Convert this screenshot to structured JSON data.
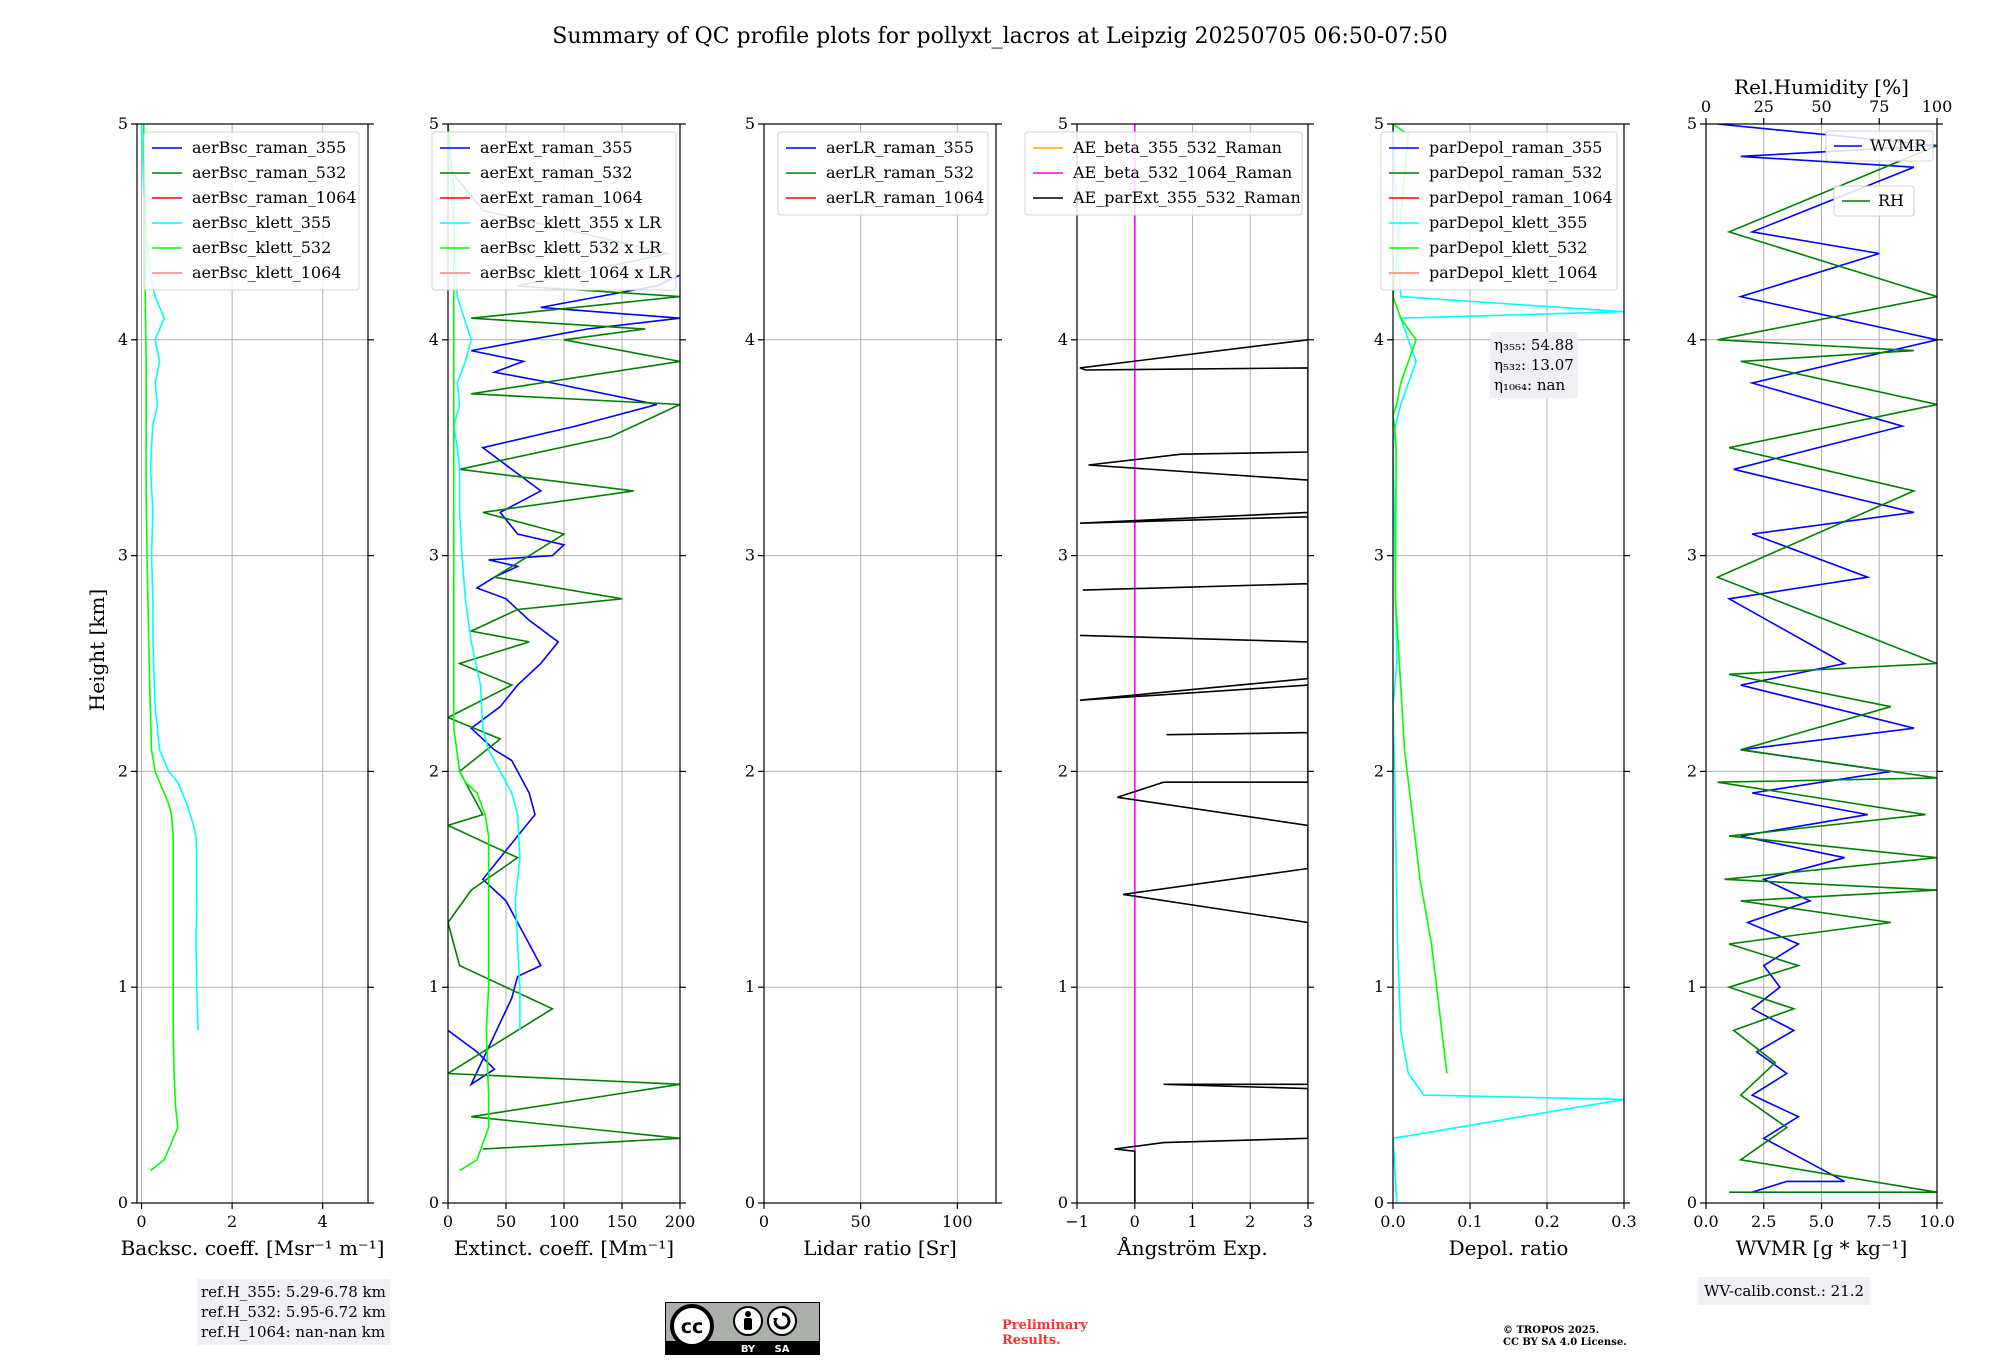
{
  "figure": {
    "title": "Summary of QC profile plots for pollyxt_lacros at Leipzig 20250705 06:50-07:50",
    "ylabel": "Height [km]",
    "yticks": [
      "0",
      "1",
      "2",
      "3",
      "4",
      "5"
    ]
  },
  "chart_data": [
    {
      "id": "bsc",
      "type": "line",
      "xlabel": "Backsc. coeff. [Msr⁻¹ m⁻¹]",
      "xlim": [
        -0.1,
        5
      ],
      "ylim": [
        0,
        5
      ],
      "xticks": [
        0,
        2,
        4
      ],
      "xtick_labels": [
        "0",
        "2",
        "4"
      ],
      "grid": true,
      "legend": "top-right",
      "series": [
        {
          "name": "aerBsc_raman_355",
          "color": "#0000ff",
          "x": [],
          "y": []
        },
        {
          "name": "aerBsc_raman_532",
          "color": "#008000",
          "x": [],
          "y": []
        },
        {
          "name": "aerBsc_raman_1064",
          "color": "#ff0000",
          "x": [],
          "y": []
        },
        {
          "name": "aerBsc_klett_355",
          "color": "#00ffff",
          "x": [
            1.25,
            1.22,
            1.2,
            1.22,
            1.22,
            1.2,
            1.15,
            1.0,
            0.8,
            0.6,
            0.4,
            0.3,
            0.25,
            0.25,
            0.22,
            0.25,
            0.2,
            0.22,
            0.25,
            0.35,
            0.3,
            0.4,
            0.3,
            0.5,
            0.3,
            0.2,
            0.15,
            0.1,
            0.05,
            0.0
          ],
          "y": [
            0.8,
            1.0,
            1.2,
            1.4,
            1.6,
            1.7,
            1.75,
            1.85,
            1.95,
            2.0,
            2.1,
            2.3,
            2.6,
            2.8,
            3.0,
            3.2,
            3.4,
            3.5,
            3.6,
            3.7,
            3.8,
            3.9,
            4.0,
            4.1,
            4.2,
            4.3,
            4.4,
            4.5,
            4.7,
            5.0
          ]
        },
        {
          "name": "aerBsc_klett_532",
          "color": "#00ff00",
          "x": [
            0.2,
            0.5,
            0.8,
            0.75,
            0.72,
            0.7,
            0.7,
            0.7,
            0.7,
            0.7,
            0.7,
            0.66,
            0.6,
            0.5,
            0.4,
            0.3,
            0.22,
            0.18,
            0.15,
            0.12,
            0.1,
            0.1,
            0.1,
            0.08,
            0.1,
            0.08,
            0.05,
            0.05
          ],
          "y": [
            0.15,
            0.2,
            0.35,
            0.45,
            0.6,
            0.8,
            1.0,
            1.2,
            1.4,
            1.6,
            1.7,
            1.8,
            1.85,
            1.9,
            1.95,
            2.0,
            2.1,
            2.4,
            2.7,
            3.0,
            3.3,
            3.6,
            3.9,
            4.2,
            4.5,
            4.7,
            4.85,
            5.0
          ]
        },
        {
          "name": "aerBsc_klett_1064",
          "color": "#ff8080",
          "x": [],
          "y": []
        }
      ]
    },
    {
      "id": "ext",
      "type": "line",
      "xlabel": "Extinct. coeff. [Mm⁻¹]",
      "xlim": [
        0,
        200
      ],
      "ylim": [
        0,
        5
      ],
      "xticks": [
        0,
        50,
        100,
        150,
        200
      ],
      "xtick_labels": [
        "0",
        "50",
        "100",
        "150",
        "200"
      ],
      "grid": true,
      "legend": "top-right",
      "series": [
        {
          "name": "aerExt_raman_355",
          "color": "#0000ff",
          "x": [
            0,
            25,
            40,
            20,
            55,
            60,
            80,
            70,
            60,
            50,
            30,
            45,
            60,
            75,
            70,
            65,
            60,
            55,
            40,
            20,
            45,
            60,
            80,
            95,
            70,
            50,
            25,
            40,
            60,
            35,
            90,
            100,
            60,
            45,
            80,
            30,
            110,
            180,
            90,
            40,
            65,
            20,
            70,
            120,
            200,
            80,
            130,
            180,
            200
          ],
          "y": [
            0.8,
            0.7,
            0.62,
            0.55,
            0.95,
            1.05,
            1.1,
            1.2,
            1.3,
            1.4,
            1.5,
            1.6,
            1.7,
            1.8,
            1.9,
            1.95,
            2.0,
            2.05,
            2.1,
            2.2,
            2.3,
            2.4,
            2.5,
            2.6,
            2.7,
            2.8,
            2.85,
            2.9,
            2.95,
            2.98,
            3.0,
            3.05,
            3.1,
            3.2,
            3.3,
            3.5,
            3.6,
            3.7,
            3.8,
            3.85,
            3.9,
            3.95,
            4.0,
            4.05,
            4.1,
            4.15,
            4.2,
            4.25,
            4.3
          ]
        },
        {
          "name": "aerExt_raman_532",
          "color": "#008000",
          "x": [
            30,
            200,
            20,
            200,
            0,
            90,
            10,
            0,
            20,
            60,
            0,
            30,
            10,
            45,
            0,
            55,
            10,
            70,
            20,
            60,
            150,
            40,
            100,
            30,
            160,
            10,
            140,
            200,
            20,
            200,
            100,
            170,
            20,
            200,
            60,
            190,
            30,
            0
          ],
          "y": [
            0.25,
            0.3,
            0.4,
            0.55,
            0.6,
            0.9,
            1.1,
            1.3,
            1.45,
            1.6,
            1.75,
            1.8,
            2.0,
            2.15,
            2.25,
            2.4,
            2.5,
            2.6,
            2.65,
            2.75,
            2.8,
            2.9,
            3.1,
            3.2,
            3.3,
            3.4,
            3.55,
            3.7,
            3.75,
            3.9,
            4.0,
            4.05,
            4.1,
            4.2,
            4.25,
            4.4,
            4.6,
            4.8
          ]
        },
        {
          "name": "aerExt_raman_1064",
          "color": "#ff0000",
          "x": [],
          "y": []
        },
        {
          "name": "aerBsc_klett_355 x LR",
          "color": "#00ffff",
          "x": [
            62,
            62,
            60,
            58,
            62,
            60,
            55,
            50,
            45,
            40,
            35,
            30,
            28,
            20,
            15,
            12,
            10,
            10,
            8,
            5,
            10,
            8,
            15,
            20,
            8,
            5,
            0
          ],
          "y": [
            0.8,
            1.0,
            1.2,
            1.4,
            1.6,
            1.8,
            1.9,
            1.95,
            2.0,
            2.05,
            2.1,
            2.2,
            2.4,
            2.6,
            2.8,
            3.0,
            3.2,
            3.4,
            3.5,
            3.6,
            3.7,
            3.8,
            3.9,
            4.0,
            4.2,
            4.5,
            5.0
          ]
        },
        {
          "name": "aerBsc_klett_532 x LR",
          "color": "#00ff00",
          "x": [
            10,
            25,
            35,
            35,
            33,
            35,
            35,
            35,
            32,
            25,
            15,
            10,
            5,
            5,
            5,
            5,
            5,
            5,
            5,
            5,
            0
          ],
          "y": [
            0.15,
            0.2,
            0.35,
            0.5,
            0.8,
            1.0,
            1.4,
            1.7,
            1.8,
            1.9,
            1.95,
            2.0,
            2.2,
            2.5,
            2.8,
            3.2,
            3.6,
            4.0,
            4.3,
            4.7,
            5.0
          ]
        },
        {
          "name": "aerBsc_klett_1064 x LR",
          "color": "#ff8080",
          "x": [],
          "y": []
        }
      ]
    },
    {
      "id": "lr",
      "type": "line",
      "xlabel": "Lidar ratio [Sr]",
      "xlim": [
        0,
        120
      ],
      "ylim": [
        0,
        5
      ],
      "xticks": [
        0,
        50,
        100
      ],
      "xtick_labels": [
        "0",
        "50",
        "100"
      ],
      "grid": true,
      "legend": "top-right",
      "series": [
        {
          "name": "aerLR_raman_355",
          "color": "#0000ff",
          "x": [],
          "y": []
        },
        {
          "name": "aerLR_raman_532",
          "color": "#008000",
          "x": [],
          "y": []
        },
        {
          "name": "aerLR_raman_1064",
          "color": "#ff0000",
          "x": [],
          "y": []
        }
      ]
    },
    {
      "id": "ae",
      "type": "line",
      "xlabel": "Ångström Exp.",
      "xlim": [
        -1,
        3
      ],
      "ylim": [
        0,
        5
      ],
      "xticks": [
        -1,
        0,
        1,
        2,
        3
      ],
      "xtick_labels": [
        "−1",
        "0",
        "1",
        "2",
        "3"
      ],
      "grid": true,
      "legend": "top-right",
      "series": [
        {
          "name": "AE_beta_355_532_Raman",
          "color": "#ffa500",
          "x": [],
          "y": []
        },
        {
          "name": "AE_beta_532_1064_Raman",
          "color": "#ff00ff",
          "x": [
            0,
            0
          ],
          "y": [
            0,
            5
          ]
        },
        {
          "name": "AE_parExt_355_532_Raman",
          "color": "#000000",
          "x": [
            0,
            0,
            -0.35,
            0.5,
            3,
            3,
            0.5,
            3,
            3,
            -0.2,
            3,
            3,
            -0.3,
            0.5,
            3,
            3,
            0.55,
            3,
            3,
            -0.95,
            3,
            3,
            -0.95,
            3,
            3,
            -0.9,
            3,
            3,
            -0.95,
            3,
            3,
            -0.8,
            0.8,
            3,
            3,
            -0.85,
            -0.95,
            3
          ],
          "y": [
            0,
            0.24,
            0.25,
            0.28,
            0.3,
            0.53,
            0.55,
            0.55,
            1.3,
            1.43,
            1.55,
            1.75,
            1.88,
            1.95,
            1.95,
            2.18,
            2.17,
            2.18,
            2.4,
            2.33,
            2.43,
            2.6,
            2.63,
            2.6,
            2.87,
            2.84,
            2.87,
            3.2,
            3.15,
            3.18,
            3.35,
            3.42,
            3.47,
            3.48,
            3.87,
            3.86,
            3.87,
            4.0
          ]
        }
      ]
    },
    {
      "id": "dep",
      "type": "line",
      "xlabel": "Depol. ratio",
      "xlim": [
        0,
        0.3
      ],
      "ylim": [
        0,
        5
      ],
      "xticks": [
        0,
        0.1,
        0.2,
        0.3
      ],
      "xtick_labels": [
        "0.0",
        "0.1",
        "0.2",
        "0.3"
      ],
      "grid": true,
      "legend": "top-right",
      "series": [
        {
          "name": "parDepol_raman_355",
          "color": "#0000ff",
          "x": [],
          "y": []
        },
        {
          "name": "parDepol_raman_532",
          "color": "#008000",
          "x": [],
          "y": []
        },
        {
          "name": "parDepol_raman_1064",
          "color": "#ff0000",
          "x": [],
          "y": []
        },
        {
          "name": "parDepol_klett_355",
          "color": "#00ffff",
          "x": [
            0.005,
            0.0,
            0.3,
            0.04,
            0.02,
            0.01,
            0.006,
            0.004,
            0.002,
            0.0,
            0.005,
            0.0,
            0.003,
            0.01,
            0.02,
            0.03,
            0.02,
            0.01,
            0.3,
            0.01,
            0.0
          ],
          "y": [
            0.0,
            0.3,
            0.48,
            0.5,
            0.6,
            0.8,
            1.2,
            1.6,
            2.0,
            2.3,
            2.5,
            3.5,
            3.6,
            3.7,
            3.8,
            3.9,
            4.0,
            4.1,
            4.13,
            4.2,
            5.0
          ]
        },
        {
          "name": "parDepol_klett_532",
          "color": "#00ff00",
          "x": [
            0.07,
            0.06,
            0.05,
            0.035,
            0.025,
            0.015,
            0.01,
            0.005,
            0.003,
            0.004,
            0.002,
            0.0,
            0.005,
            0.01,
            0.02,
            0.03,
            0.02,
            0.01,
            0.0,
            0.02,
            0.0
          ],
          "y": [
            0.6,
            0.9,
            1.2,
            1.5,
            1.8,
            2.1,
            2.4,
            2.7,
            2.8,
            3.5,
            3.6,
            3.65,
            3.7,
            3.8,
            3.9,
            4.0,
            4.05,
            4.1,
            4.2,
            4.95,
            5.0
          ]
        },
        {
          "name": "parDepol_klett_1064",
          "color": "#fa8072",
          "x": [],
          "y": []
        }
      ]
    },
    {
      "id": "wv",
      "type": "line",
      "xlabel": "WVMR [g * kg⁻¹]",
      "xlim": [
        0,
        10
      ],
      "ylim": [
        0,
        5
      ],
      "xticks": [
        0,
        2.5,
        5,
        7.5,
        10
      ],
      "xtick_labels": [
        "0.0",
        "2.5",
        "5.0",
        "7.5",
        "10.0"
      ],
      "x2label": "Rel.Humidity [%]",
      "x2lim": [
        0,
        100
      ],
      "x2ticks": [
        0,
        25,
        50,
        75,
        100
      ],
      "x2tick_labels": [
        "0",
        "25",
        "50",
        "75",
        "100"
      ],
      "grid": true,
      "legend": "top-right",
      "series": [
        {
          "name": "WVMR",
          "color": "#0000ff",
          "x": [
            2.0,
            3.5,
            6.0,
            2.5,
            4.0,
            2.0,
            3.5,
            2.2,
            3.8,
            2.0,
            3.2,
            2.5,
            4.0,
            1.8,
            4.5,
            2.5,
            6.0,
            1.5,
            7.0,
            2.0,
            8.0,
            1.5,
            9.0,
            1.5,
            6.0,
            1.0,
            7.0,
            2.0,
            9.0,
            1.2,
            8.5,
            2.0,
            10.0,
            1.5,
            7.5,
            2.0,
            9.0,
            1.5,
            10.0,
            0.5
          ],
          "y": [
            0.05,
            0.1,
            0.1,
            0.3,
            0.4,
            0.5,
            0.6,
            0.7,
            0.8,
            0.9,
            1.0,
            1.1,
            1.2,
            1.3,
            1.4,
            1.5,
            1.6,
            1.7,
            1.8,
            1.9,
            2.0,
            2.1,
            2.2,
            2.4,
            2.5,
            2.8,
            2.9,
            3.1,
            3.2,
            3.4,
            3.6,
            3.8,
            4.0,
            4.2,
            4.4,
            4.5,
            4.8,
            4.85,
            4.9,
            5.0
          ]
        },
        {
          "name": "RH",
          "color": "#008000",
          "x": [
            1.0,
            10.0,
            1.5,
            3.5,
            1.5,
            3.0,
            1.2,
            3.8,
            1.0,
            4.0,
            1.0,
            8.0,
            1.5,
            10.0,
            0.8,
            10.0,
            1.0,
            9.5,
            0.5,
            10.0,
            1.5,
            8.0,
            1.0,
            10.0,
            0.5,
            9.0,
            1.0,
            10.0,
            1.5,
            9.0,
            0.5,
            10.0,
            1.0,
            10.0
          ],
          "y": [
            0.05,
            0.05,
            0.2,
            0.35,
            0.5,
            0.65,
            0.8,
            0.9,
            1.0,
            1.1,
            1.2,
            1.3,
            1.4,
            1.45,
            1.5,
            1.6,
            1.7,
            1.8,
            1.95,
            1.97,
            2.1,
            2.3,
            2.45,
            2.5,
            2.9,
            3.3,
            3.5,
            3.7,
            3.9,
            3.95,
            4.0,
            4.2,
            4.5,
            4.9
          ]
        }
      ]
    }
  ],
  "annotations": {
    "eta_lines": [
      "η₃₅₅: 54.88",
      "η₅₃₂: 13.07",
      "η₁₀₆₄: nan"
    ],
    "ref_h": [
      "ref.H_355: 5.29-6.78 km",
      "ref.H_532: 5.95-6.72 km",
      "ref.H_1064: nan-nan km"
    ],
    "wv_calib": "WV-calib.const.: 21.2",
    "preliminary": [
      "Preliminary",
      "Results."
    ],
    "license": [
      "© TROPOS 2025.",
      "CC BY SA 4.0 License."
    ],
    "cc_badge": {
      "text_by": "BY",
      "text_sa": "SA",
      "icon": "creative-commons-icon"
    }
  }
}
